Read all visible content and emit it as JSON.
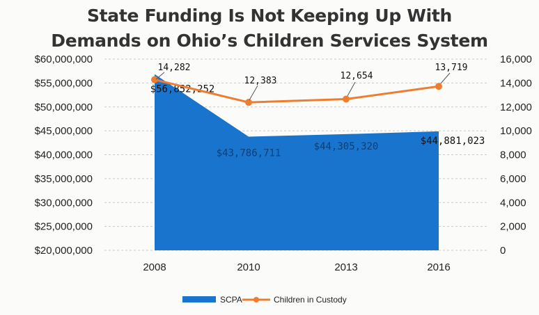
{
  "chart_data": {
    "type": "area+line",
    "title_lines": [
      "State Funding Is Not Keeping Up With",
      "Demands on Ohio’s Children Services System"
    ],
    "categories": [
      "2008",
      "2010",
      "2013",
      "2016"
    ],
    "series": [
      {
        "name": "SCPA",
        "type": "area",
        "axis": "left",
        "values": [
          56852252,
          43786711,
          44305320,
          44881023
        ],
        "labels": [
          "$56,852,252",
          "$43,786,711",
          "$44,305,320",
          "$44,881,023"
        ],
        "color": "#1874cd"
      },
      {
        "name": "Children in Custody",
        "type": "line",
        "axis": "right",
        "values": [
          14282,
          12383,
          12654,
          13719
        ],
        "labels": [
          "14,282",
          "12,383",
          "12,654",
          "13,719"
        ],
        "color": "#ed7d31"
      }
    ],
    "y_left": {
      "min": 20000000,
      "max": 60000000,
      "ticks": [
        "$20,000,000",
        "$25,000,000",
        "$30,000,000",
        "$35,000,000",
        "$40,000,000",
        "$45,000,000",
        "$50,000,000",
        "$55,000,000",
        "$60,000,000"
      ]
    },
    "y_right": {
      "min": 0,
      "max": 16000,
      "ticks": [
        "0",
        "2,000",
        "4,000",
        "6,000",
        "8,000",
        "10,000",
        "12,000",
        "14,000",
        "16,000"
      ]
    },
    "grid": true,
    "legend_position": "bottom"
  }
}
